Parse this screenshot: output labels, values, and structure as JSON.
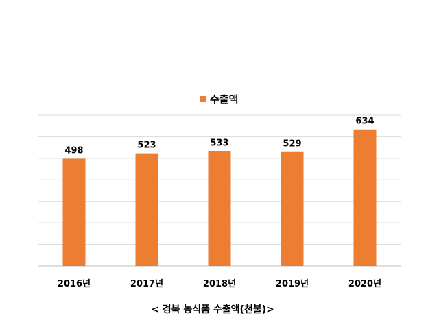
{
  "chart_data": {
    "type": "bar",
    "categories": [
      "2016년",
      "2017년",
      "2018년",
      "2019년",
      "2020년"
    ],
    "series": [
      {
        "name": "수출액",
        "values": [
          498,
          523,
          533,
          529,
          634
        ],
        "color": "#ED7D31"
      }
    ],
    "ylim": [
      0,
      700
    ],
    "gridlines": true,
    "legend_position": "top-center",
    "caption": "< 경북 농식품 수출액(천불)>"
  }
}
